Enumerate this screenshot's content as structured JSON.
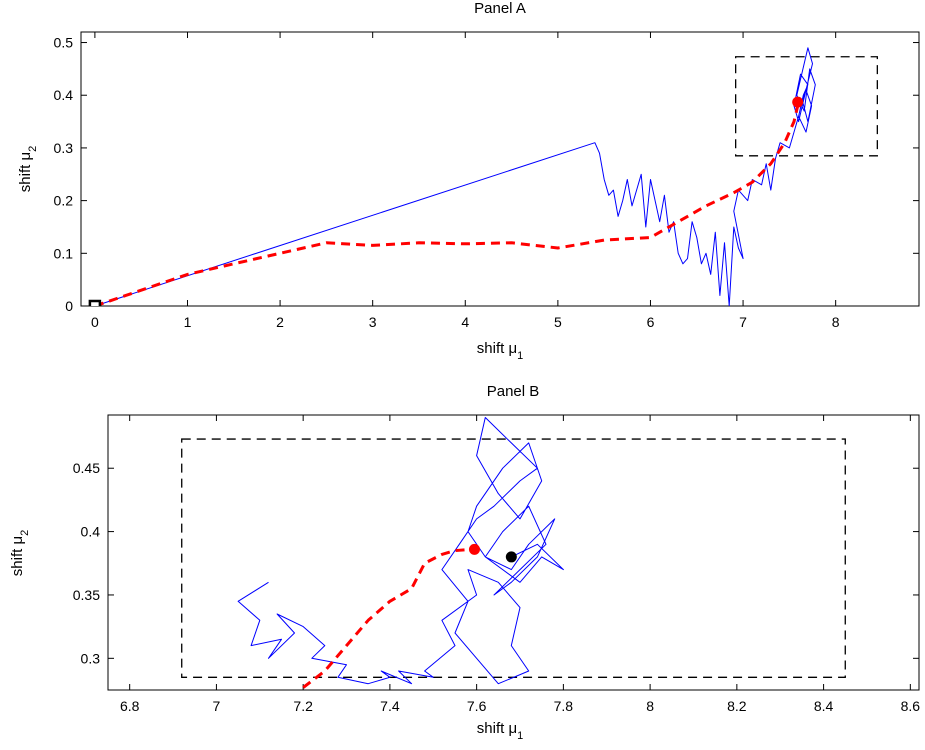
{
  "colors": {
    "path": "#0000ff",
    "mean_path": "#ff0000",
    "box": "#000000",
    "final_mean": "#ff0000",
    "final_point": "#000000"
  },
  "chart_data": [
    {
      "type": "line",
      "title": "Panel A",
      "xlabel": "shift μ",
      "xlabel_sub": "1",
      "ylabel": "shift μ",
      "ylabel_sub": "2",
      "xlim": [
        -0.15,
        8.9
      ],
      "ylim": [
        0,
        0.52
      ],
      "xticks": [
        0,
        1,
        2,
        3,
        4,
        5,
        6,
        7,
        8
      ],
      "yticks": [
        0,
        0.1,
        0.2,
        0.3,
        0.4,
        0.5
      ],
      "grid": false,
      "series": [
        {
          "role": "sampled path",
          "style": "solid",
          "x": [
            0,
            5.4,
            5.45,
            5.5,
            5.55,
            5.6,
            5.65,
            5.7,
            5.75,
            5.8,
            5.85,
            5.9,
            5.95,
            6.0,
            6.05,
            6.1,
            6.15,
            6.2,
            6.25,
            6.3,
            6.35,
            6.4,
            6.45,
            6.5,
            6.55,
            6.6,
            6.65,
            6.7,
            6.75,
            6.8,
            6.85,
            6.9,
            6.95,
            7.0,
            6.9,
            6.95,
            7.05,
            7.1,
            7.2,
            7.25,
            7.3,
            7.35,
            7.4,
            7.5,
            7.55,
            7.6,
            7.65,
            7.7,
            7.62,
            7.55,
            7.6,
            7.68,
            7.75,
            7.7,
            7.62,
            7.58,
            7.66,
            7.72,
            7.78,
            7.7,
            7.64,
            7.6,
            7.68,
            7.74,
            7.68,
            7.62
          ],
          "y": [
            0,
            0.31,
            0.29,
            0.24,
            0.21,
            0.22,
            0.17,
            0.2,
            0.24,
            0.19,
            0.22,
            0.25,
            0.15,
            0.24,
            0.2,
            0.16,
            0.21,
            0.14,
            0.16,
            0.1,
            0.08,
            0.09,
            0.16,
            0.13,
            0.08,
            0.1,
            0.06,
            0.14,
            0.02,
            0.12,
            0.0,
            0.15,
            0.11,
            0.09,
            0.18,
            0.22,
            0.2,
            0.24,
            0.23,
            0.27,
            0.22,
            0.28,
            0.31,
            0.3,
            0.33,
            0.36,
            0.4,
            0.42,
            0.44,
            0.38,
            0.35,
            0.41,
            0.46,
            0.49,
            0.43,
            0.4,
            0.37,
            0.45,
            0.42,
            0.35,
            0.39,
            0.36,
            0.33,
            0.38,
            0.41,
            0.38
          ]
        },
        {
          "role": "running mean",
          "style": "dashed",
          "x": [
            0,
            0.5,
            1.0,
            1.5,
            2.0,
            2.5,
            3.0,
            3.5,
            4.0,
            4.5,
            5.0,
            5.5,
            6.0,
            6.3,
            6.6,
            6.9,
            7.1,
            7.3,
            7.45,
            7.55,
            7.6
          ],
          "y": [
            0,
            0.03,
            0.06,
            0.08,
            0.1,
            0.12,
            0.115,
            0.12,
            0.118,
            0.12,
            0.11,
            0.125,
            0.13,
            0.16,
            0.19,
            0.215,
            0.235,
            0.27,
            0.31,
            0.35,
            0.387
          ]
        }
      ],
      "markers": [
        {
          "role": "start",
          "x": 0,
          "y": 0,
          "shape": "square"
        },
        {
          "role": "final running mean",
          "x": 7.59,
          "y": 0.387,
          "shape": "dot"
        }
      ],
      "box": {
        "x0": 6.92,
        "x1": 8.45,
        "y0": 0.285,
        "y1": 0.473
      }
    },
    {
      "type": "line",
      "title": "Panel B",
      "xlabel": "shift μ",
      "xlabel_sub": "1",
      "ylabel": "shift μ",
      "ylabel_sub": "2",
      "xlim": [
        6.75,
        8.62
      ],
      "ylim": [
        0.275,
        0.492
      ],
      "xticks": [
        6.8,
        7,
        7.2,
        7.4,
        7.6,
        7.8,
        8,
        8.2,
        8.4,
        8.6
      ],
      "yticks": [
        0.3,
        0.35,
        0.4,
        0.45
      ],
      "grid": false,
      "series": [
        {
          "role": "sampled path",
          "style": "solid",
          "x": [
            7.12,
            7.05,
            7.1,
            7.08,
            7.15,
            7.12,
            7.18,
            7.14,
            7.2,
            7.25,
            7.22,
            7.3,
            7.28,
            7.35,
            7.4,
            7.38,
            7.45,
            7.42,
            7.5,
            7.48,
            7.55,
            7.52,
            7.6,
            7.58,
            7.65,
            7.7,
            7.68,
            7.72,
            7.65,
            7.6,
            7.55,
            7.58,
            7.52,
            7.56,
            7.6,
            7.64,
            7.7,
            7.74,
            7.68,
            7.62,
            7.6,
            7.65,
            7.7,
            7.75,
            7.72,
            7.66,
            7.6,
            7.58,
            7.62,
            7.68,
            7.72,
            7.78,
            7.74,
            7.68,
            7.64,
            7.7,
            7.76,
            7.72,
            7.66,
            7.62,
            7.7,
            7.75,
            7.8,
            7.74,
            7.68
          ],
          "y": [
            0.36,
            0.345,
            0.33,
            0.31,
            0.315,
            0.3,
            0.32,
            0.335,
            0.325,
            0.31,
            0.3,
            0.295,
            0.285,
            0.28,
            0.285,
            0.29,
            0.28,
            0.29,
            0.285,
            0.29,
            0.31,
            0.33,
            0.35,
            0.37,
            0.36,
            0.34,
            0.31,
            0.29,
            0.28,
            0.3,
            0.32,
            0.345,
            0.37,
            0.39,
            0.41,
            0.42,
            0.44,
            0.45,
            0.47,
            0.49,
            0.46,
            0.43,
            0.41,
            0.44,
            0.47,
            0.45,
            0.42,
            0.4,
            0.38,
            0.37,
            0.39,
            0.41,
            0.38,
            0.36,
            0.35,
            0.37,
            0.39,
            0.42,
            0.4,
            0.38,
            0.36,
            0.38,
            0.37,
            0.39,
            0.38
          ]
        },
        {
          "role": "running mean",
          "style": "dashed",
          "x": [
            7.2,
            7.25,
            7.3,
            7.35,
            7.4,
            7.45,
            7.48,
            7.52,
            7.55,
            7.59
          ],
          "y": [
            0.277,
            0.29,
            0.31,
            0.33,
            0.345,
            0.355,
            0.375,
            0.382,
            0.385,
            0.386
          ]
        }
      ],
      "markers": [
        {
          "role": "final running mean",
          "x": 7.595,
          "y": 0.386,
          "shape": "dot"
        },
        {
          "role": "final sample",
          "x": 7.68,
          "y": 0.38,
          "shape": "dot"
        }
      ],
      "box": {
        "x0": 6.92,
        "x1": 8.45,
        "y0": 0.285,
        "y1": 0.473
      }
    }
  ]
}
